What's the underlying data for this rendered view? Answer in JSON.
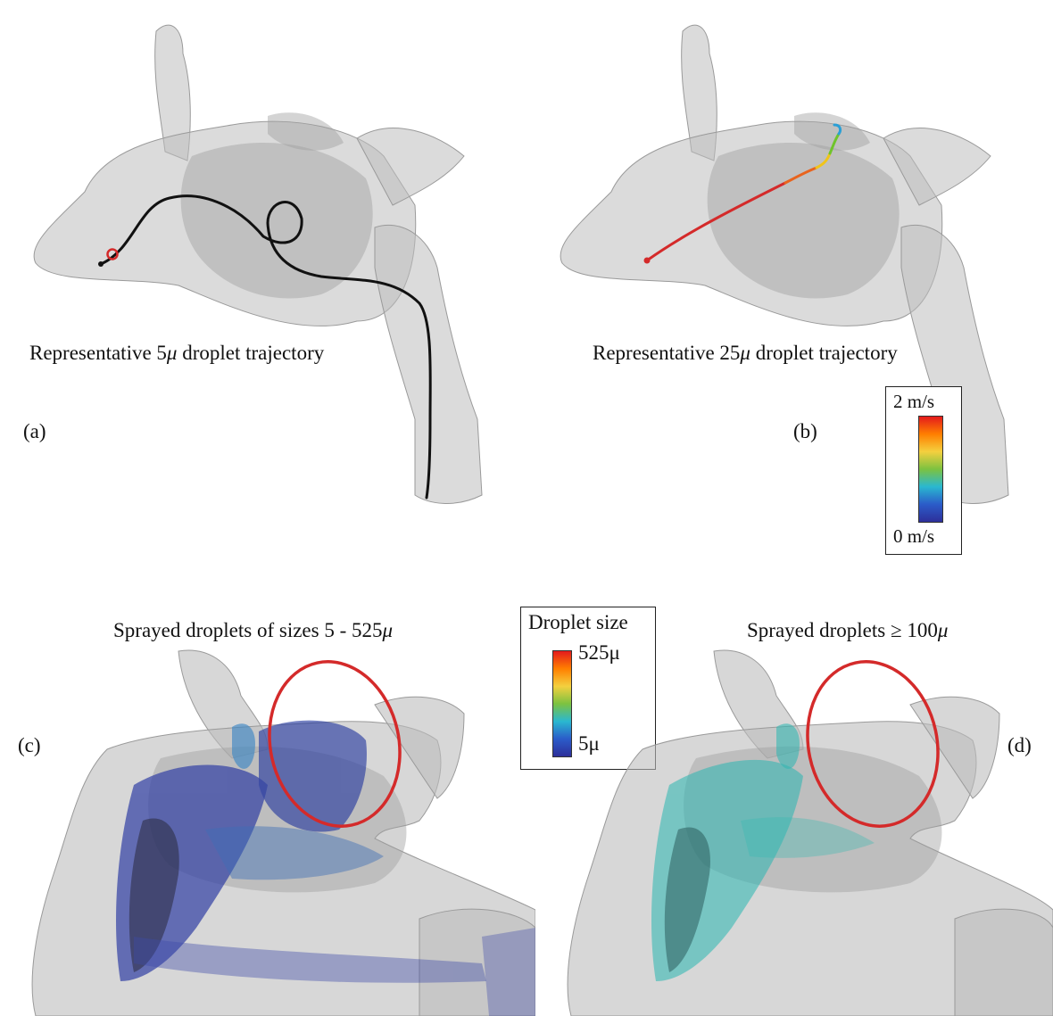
{
  "panel_a": {
    "tag": "(a)",
    "caption_pre": "Representative",
    "caption_num": "5",
    "caption_unit": "μ",
    "caption_post": "droplet trajectory"
  },
  "panel_b": {
    "tag": "(b)",
    "caption_pre": "Representative",
    "caption_num": "25",
    "caption_unit": "μ",
    "caption_post": "droplet trajectory"
  },
  "panel_c": {
    "tag": "(c)",
    "caption_pre": "Sprayed droplets of sizes 5 - 525",
    "caption_unit": "μ"
  },
  "panel_d": {
    "tag": "(d)",
    "caption_pre": "Sprayed droplets ≥ 100",
    "caption_unit": "μ"
  },
  "velocity_legend": {
    "max_label": "2 m/s",
    "min_label": "0 m/s"
  },
  "size_legend": {
    "title": "Droplet size",
    "max_label": "525μ",
    "min_label": "5μ"
  },
  "colors": {
    "airway": "#b9b9b9",
    "trajectory_5": "#111111",
    "trajectory_25": "#d42a2a",
    "droplets_small": "#243a9e",
    "droplets_large": "#27b6b0",
    "highlight_ring": "#d42a2a"
  }
}
